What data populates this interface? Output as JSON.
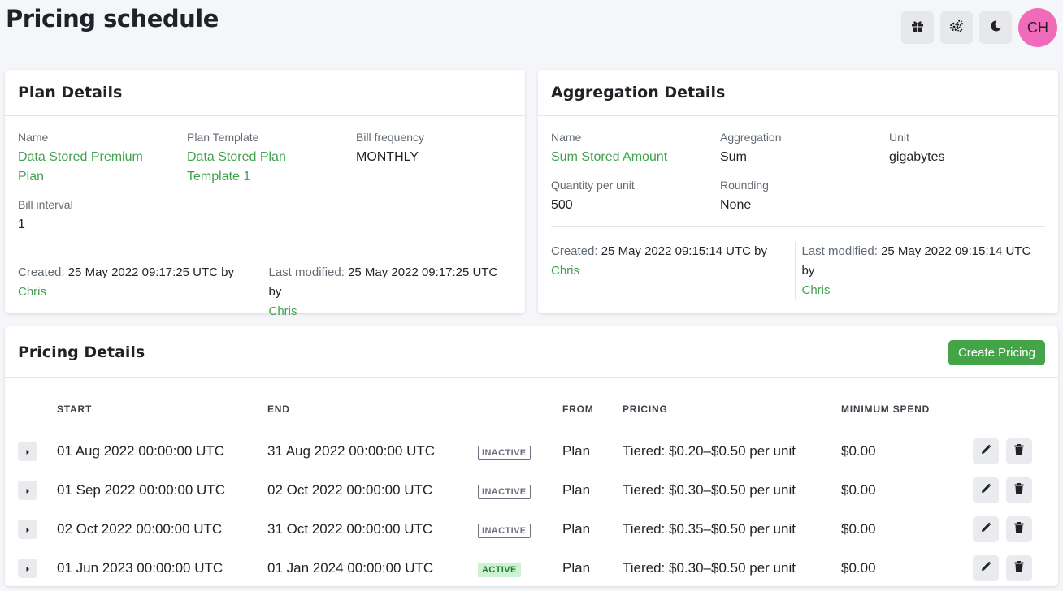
{
  "header": {
    "title": "Pricing schedule",
    "avatar_initials": "CH"
  },
  "top_icons": [
    "gift-icon",
    "settings-icon",
    "moon-icon"
  ],
  "plan_card": {
    "title": "Plan Details",
    "fields": {
      "name_label": "Name",
      "name_value": "Data Stored Premium Plan",
      "template_label": "Plan Template",
      "template_value": "Data Stored Plan Template 1",
      "frequency_label": "Bill frequency",
      "frequency_value": "MONTHLY",
      "interval_label": "Bill interval",
      "interval_value": "1"
    },
    "created_label": "Created:",
    "created_value": "25 May 2022 09:17:25 UTC by",
    "created_by": "Chris",
    "modified_label": "Last modified:",
    "modified_value": "25 May 2022 09:17:25 UTC by",
    "modified_by": "Chris"
  },
  "aggregation_card": {
    "title": "Aggregation Details",
    "fields": {
      "name_label": "Name",
      "name_value": "Sum Stored Amount",
      "aggregation_label": "Aggregation",
      "aggregation_value": "Sum",
      "unit_label": "Unit",
      "unit_value": "gigabytes",
      "qty_label": "Quantity per unit",
      "qty_value": "500",
      "rounding_label": "Rounding",
      "rounding_value": "None"
    },
    "created_label": "Created:",
    "created_value": "25 May 2022 09:15:14 UTC by",
    "created_by": "Chris",
    "modified_label": "Last modified:",
    "modified_value": "25 May 2022 09:15:14 UTC by",
    "modified_by": "Chris"
  },
  "pricing_card": {
    "title": "Pricing Details",
    "create_button": "Create Pricing",
    "columns": {
      "start": "START",
      "end": "END",
      "from": "FROM",
      "pricing": "PRICING",
      "min_spend": "MINIMUM SPEND"
    },
    "rows": [
      {
        "start": "01 Aug 2022 00:00:00 UTC",
        "end": "31 Aug 2022 00:00:00 UTC",
        "status": "INACTIVE",
        "from": "Plan",
        "pricing": "Tiered: $0.20–$0.50 per unit",
        "min_spend": "$0.00"
      },
      {
        "start": "01 Sep 2022 00:00:00 UTC",
        "end": "02 Oct 2022 00:00:00 UTC",
        "status": "INACTIVE",
        "from": "Plan",
        "pricing": "Tiered: $0.30–$0.50 per unit",
        "min_spend": "$0.00"
      },
      {
        "start": "02 Oct 2022 00:00:00 UTC",
        "end": "31 Oct 2022 00:00:00 UTC",
        "status": "INACTIVE",
        "from": "Plan",
        "pricing": "Tiered: $0.35–$0.50 per unit",
        "min_spend": "$0.00"
      },
      {
        "start": "01 Jun 2023 00:00:00 UTC",
        "end": "01 Jan 2024 00:00:00 UTC",
        "status": "ACTIVE",
        "from": "Plan",
        "pricing": "Tiered: $0.30–$0.50 per unit",
        "min_spend": "$0.00"
      }
    ]
  },
  "colors": {
    "accent": "#3fa34d",
    "button": "#43a547",
    "avatar": "#f16bbb",
    "active_badge_bg": "#cdf2d2"
  }
}
